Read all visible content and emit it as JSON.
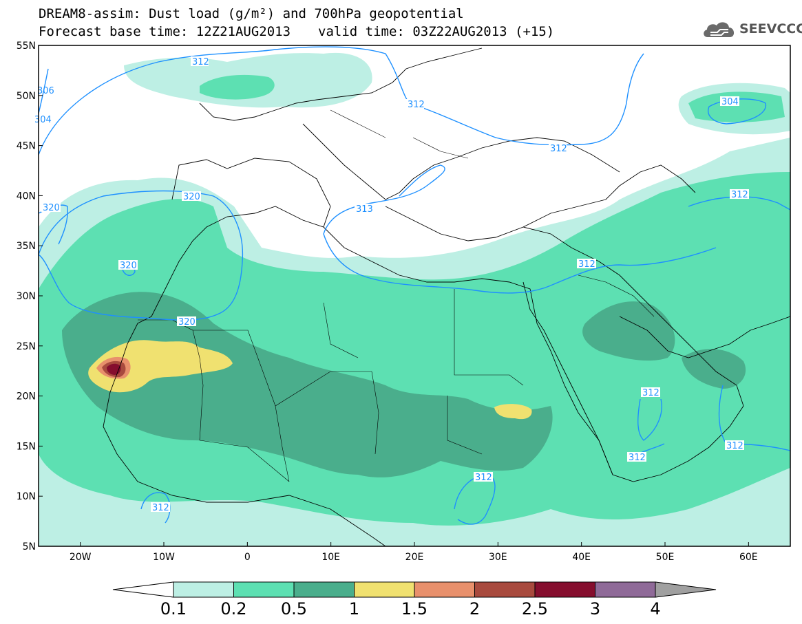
{
  "header": {
    "title_line1": "DREAM8-assim: Dust load (g/m²) and 700hPa geopotential",
    "forecast_base": "Forecast base time: 12Z21AUG2013",
    "valid_time": "valid time: 03Z22AUG2013 (+15)"
  },
  "logo": {
    "text": "SEEVCCC",
    "icon": "cloud-icon"
  },
  "map": {
    "extent": {
      "lon": [
        -25,
        65
      ],
      "lat": [
        5,
        55
      ]
    },
    "lat_ticks": [
      "55N",
      "50N",
      "45N",
      "40N",
      "35N",
      "30N",
      "25N",
      "20N",
      "15N",
      "10N",
      "5N"
    ],
    "lon_ticks": [
      "20W",
      "10W",
      "0",
      "10E",
      "20E",
      "30E",
      "40E",
      "50E",
      "60E"
    ],
    "contour_labels": [
      "312",
      "312",
      "312",
      "304",
      "306",
      "304",
      "320",
      "320",
      "320",
      "320",
      "313",
      "312",
      "312",
      "312",
      "312",
      "312",
      "312",
      "312"
    ]
  },
  "colorbar": {
    "labels": [
      "0.1",
      "0.2",
      "0.5",
      "1",
      "1.5",
      "2",
      "2.5",
      "3",
      "4"
    ],
    "colors": [
      "#ffffff",
      "#bdefe4",
      "#5de0b2",
      "#4aae8c",
      "#f0e170",
      "#e8906c",
      "#a84a3e",
      "#850e2e",
      "#8f6a98",
      "#a0a0a0"
    ]
  }
}
